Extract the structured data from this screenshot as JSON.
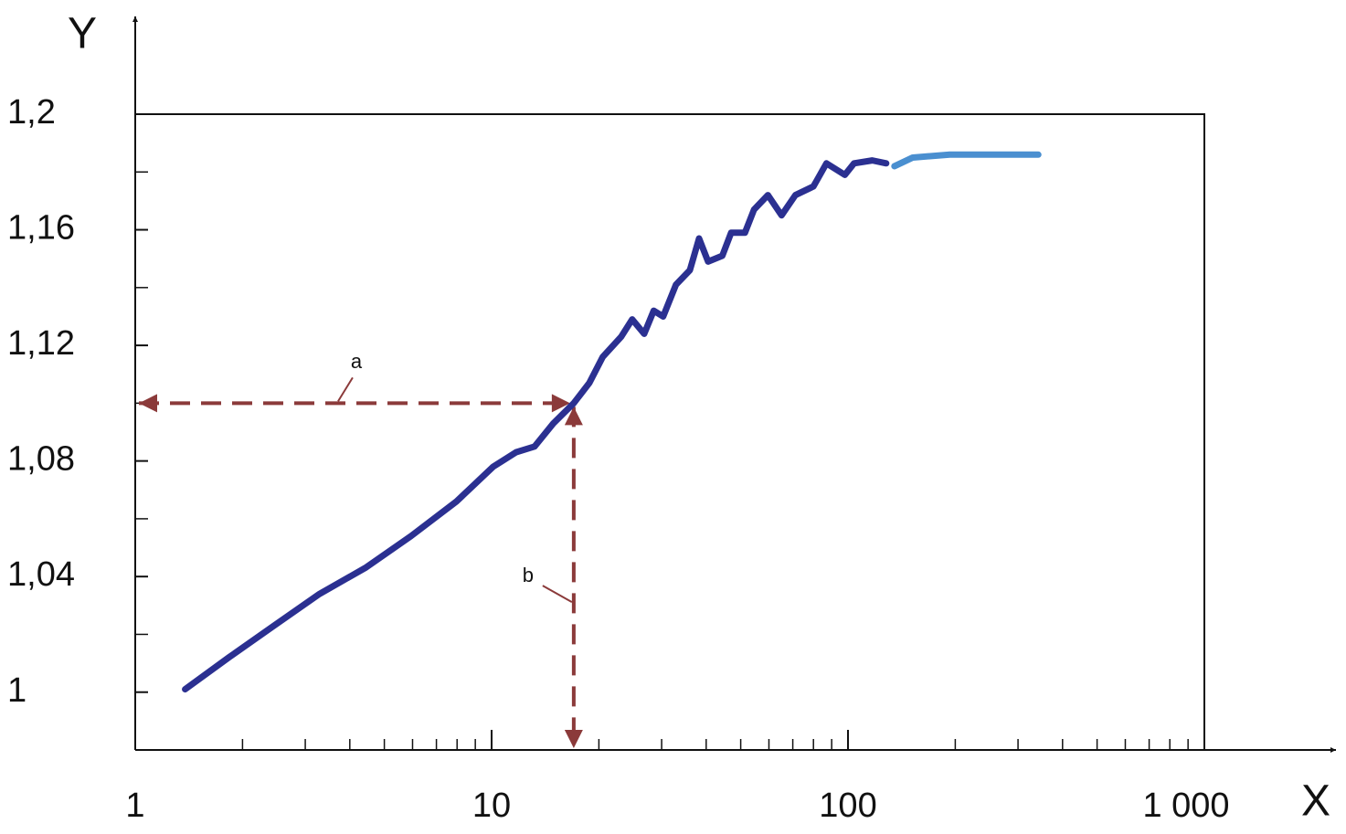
{
  "chart_data": {
    "type": "line",
    "x_label": "X",
    "y_label": "Y",
    "xscale": "log",
    "xlim": [
      1,
      1000
    ],
    "ylim": [
      0.98,
      1.2
    ],
    "xticks": [
      1,
      10,
      100,
      {
        "value": 1000,
        "label": "1 000"
      }
    ],
    "xticks_minor": [
      2,
      3,
      4,
      5,
      6,
      7,
      8,
      9,
      20,
      30,
      40,
      50,
      60,
      70,
      80,
      90,
      200,
      300,
      400,
      500,
      600,
      700,
      800,
      900
    ],
    "yticks": [
      1,
      {
        "value": 1.04,
        "label": "1,04"
      },
      {
        "value": 1.08,
        "label": "1,08"
      },
      {
        "value": 1.12,
        "label": "1,12"
      },
      {
        "value": 1.16,
        "label": "1,16"
      },
      {
        "value": 1.2,
        "label": "1,2"
      }
    ],
    "yticks_minor": [
      1.02,
      1.06,
      1.1,
      1.14,
      1.18
    ],
    "series": [
      {
        "color": "#2b3091",
        "x": [
          1.38,
          1.83,
          2.45,
          3.29,
          4.42,
          5.94,
          7.97,
          10.1,
          11.7,
          13.2,
          14.9,
          17.0,
          18.8,
          20.5,
          23.1,
          24.8,
          26.8,
          28.5,
          30.3,
          32.9,
          36.0,
          38.2,
          40.5,
          44.4,
          47.0,
          51.4,
          54.5,
          59.6,
          65.1,
          71.2,
          80.0,
          87.0,
          98.0,
          104,
          117,
          128
        ],
        "values": [
          1.001,
          1.012,
          1.023,
          1.034,
          1.043,
          1.054,
          1.066,
          1.078,
          1.083,
          1.085,
          1.093,
          1.1,
          1.107,
          1.116,
          1.123,
          1.129,
          1.124,
          1.132,
          1.13,
          1.141,
          1.146,
          1.157,
          1.149,
          1.151,
          1.159,
          1.159,
          1.167,
          1.172,
          1.165,
          1.172,
          1.175,
          1.183,
          1.179,
          1.183,
          1.184,
          1.183
        ]
      },
      {
        "color": "#4a8fd0",
        "x": [
          135,
          152,
          193,
          245,
          342
        ],
        "values": [
          1.182,
          1.185,
          1.186,
          1.186,
          1.186
        ]
      }
    ],
    "marker": {
      "x": 17,
      "y": 1.1,
      "color": "#8b3a3a",
      "labels": [
        "a",
        "b"
      ]
    }
  }
}
